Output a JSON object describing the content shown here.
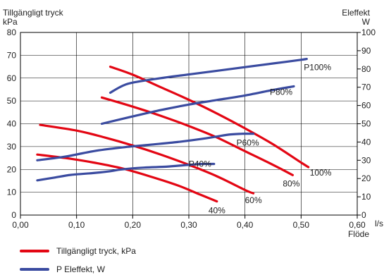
{
  "chart_data": {
    "type": "line",
    "title": "",
    "y_left_title": "Tillgängligt tryck",
    "y_left_unit": "kPa",
    "y_right_title": "Eleffekt",
    "y_right_unit": "W",
    "x_unit": "l/s",
    "x_title": "Flöde",
    "x_range": [
      0,
      0.6
    ],
    "y_left_range": [
      0,
      80
    ],
    "y_right_range": [
      0,
      100
    ],
    "x_ticks": [
      0,
      0.1,
      0.2,
      0.3,
      0.4,
      0.5,
      0.6
    ],
    "x_tick_labels": [
      "0,00",
      "0,10",
      "0,20",
      "0,30",
      "0,40",
      "0,50",
      "0,60"
    ],
    "y_left_ticks": [
      0,
      10,
      20,
      30,
      40,
      50,
      60,
      70,
      80
    ],
    "y_left_tick_labels": [
      "0",
      "10",
      "20",
      "30",
      "40",
      "50",
      "60",
      "70",
      "80"
    ],
    "y_right_ticks": [
      0,
      10,
      20,
      30,
      40,
      50,
      60,
      70,
      80,
      90,
      100
    ],
    "y_right_tick_labels": [
      "0",
      "10",
      "20",
      "30",
      "40",
      "50",
      "60",
      "70",
      "80",
      "90",
      "100"
    ],
    "grid": true,
    "colors": {
      "pressure": "#e30613",
      "power": "#3a4ba0"
    },
    "series": [
      {
        "name": "",
        "group": "pressure",
        "label": "100%",
        "axis": "left",
        "points": [
          [
            0.16,
            65
          ],
          [
            0.2,
            61.5
          ],
          [
            0.25,
            56
          ],
          [
            0.3,
            50.5
          ],
          [
            0.35,
            44.5
          ],
          [
            0.4,
            38
          ],
          [
            0.45,
            31
          ],
          [
            0.5,
            23
          ],
          [
            0.513,
            21
          ]
        ]
      },
      {
        "name": "",
        "group": "pressure",
        "label": "80%",
        "axis": "left",
        "points": [
          [
            0.145,
            51.5
          ],
          [
            0.2,
            47.5
          ],
          [
            0.25,
            43.5
          ],
          [
            0.3,
            39
          ],
          [
            0.35,
            34
          ],
          [
            0.4,
            28
          ],
          [
            0.45,
            22
          ],
          [
            0.485,
            17.5
          ]
        ]
      },
      {
        "name": "",
        "group": "pressure",
        "label": "60%",
        "axis": "left",
        "points": [
          [
            0.035,
            39.5
          ],
          [
            0.1,
            37
          ],
          [
            0.15,
            34
          ],
          [
            0.2,
            30.5
          ],
          [
            0.25,
            26.5
          ],
          [
            0.3,
            22
          ],
          [
            0.35,
            17
          ],
          [
            0.4,
            11
          ],
          [
            0.415,
            9.5
          ]
        ]
      },
      {
        "name": "",
        "group": "pressure",
        "label": "40%",
        "axis": "left",
        "points": [
          [
            0.03,
            26.5
          ],
          [
            0.08,
            25
          ],
          [
            0.13,
            23
          ],
          [
            0.18,
            20.5
          ],
          [
            0.23,
            17
          ],
          [
            0.28,
            13
          ],
          [
            0.32,
            9
          ],
          [
            0.35,
            6
          ]
        ]
      },
      {
        "name": "",
        "group": "power",
        "label": "P100%",
        "axis": "right",
        "points": [
          [
            0.16,
            67
          ],
          [
            0.18,
            70.5
          ],
          [
            0.2,
            72.5
          ],
          [
            0.25,
            75
          ],
          [
            0.3,
            77
          ],
          [
            0.35,
            79
          ],
          [
            0.4,
            81
          ],
          [
            0.45,
            83
          ],
          [
            0.5,
            85
          ],
          [
            0.51,
            85.5
          ]
        ]
      },
      {
        "name": "",
        "group": "power",
        "label": "P80%",
        "axis": "right",
        "points": [
          [
            0.145,
            50
          ],
          [
            0.2,
            54
          ],
          [
            0.25,
            57.5
          ],
          [
            0.3,
            60.5
          ],
          [
            0.35,
            63
          ],
          [
            0.4,
            65.5
          ],
          [
            0.45,
            68.5
          ],
          [
            0.487,
            70.5
          ]
        ]
      },
      {
        "name": "",
        "group": "power",
        "label": "P60%",
        "axis": "right",
        "points": [
          [
            0.03,
            30
          ],
          [
            0.08,
            32
          ],
          [
            0.13,
            35
          ],
          [
            0.18,
            37
          ],
          [
            0.23,
            38.5
          ],
          [
            0.28,
            40
          ],
          [
            0.33,
            42
          ],
          [
            0.37,
            44
          ],
          [
            0.395,
            44.5
          ],
          [
            0.415,
            44.5
          ]
        ]
      },
      {
        "name": "",
        "group": "power",
        "label": "P40%",
        "axis": "right",
        "points": [
          [
            0.03,
            19
          ],
          [
            0.06,
            20.5
          ],
          [
            0.09,
            22
          ],
          [
            0.13,
            23
          ],
          [
            0.16,
            24
          ],
          [
            0.18,
            25
          ],
          [
            0.22,
            26
          ],
          [
            0.26,
            26.5
          ],
          [
            0.3,
            27.5
          ],
          [
            0.325,
            28
          ],
          [
            0.345,
            28
          ]
        ]
      }
    ],
    "legend": {
      "position": "bottom-left",
      "items": [
        {
          "label": "Tillgängligt tryck, kPa",
          "group": "pressure"
        },
        {
          "label": "P Eleffekt, W",
          "group": "power"
        }
      ]
    }
  }
}
